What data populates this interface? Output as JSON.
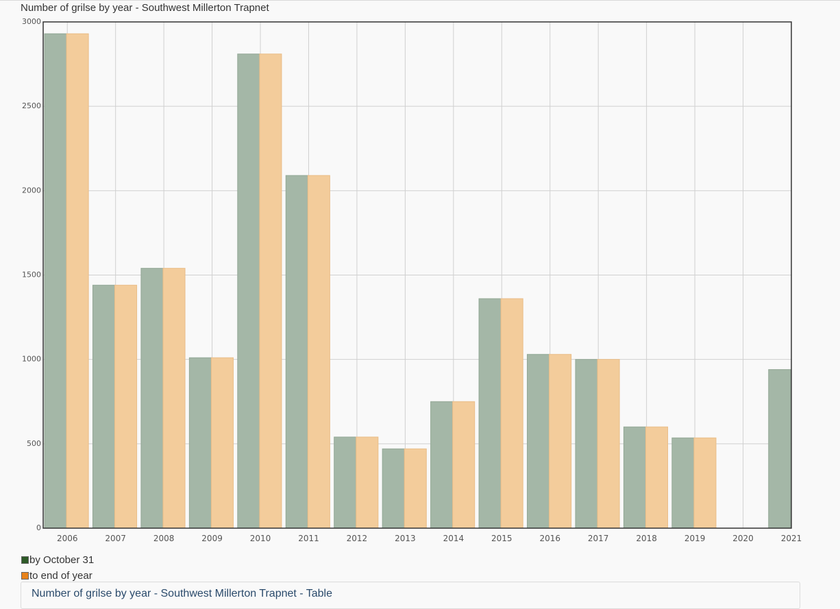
{
  "chart_data": {
    "type": "bar",
    "title": "Number of grilse by year - Southwest Millerton Trapnet",
    "xlabel": "",
    "ylabel": "",
    "ylim": [
      0,
      3000
    ],
    "yticks": [
      0,
      500,
      1000,
      1500,
      2000,
      2500,
      3000
    ],
    "categories": [
      "2006",
      "2007",
      "2008",
      "2009",
      "2010",
      "2011",
      "2012",
      "2013",
      "2014",
      "2015",
      "2016",
      "2017",
      "2018",
      "2019",
      "2020",
      "2021"
    ],
    "series": [
      {
        "name": "by October 31",
        "color": "#a4b7a7",
        "swatch_color": "#2d5a27",
        "values": [
          2930,
          1440,
          1540,
          1010,
          2810,
          2090,
          540,
          470,
          750,
          1360,
          1030,
          1000,
          600,
          535,
          0,
          940
        ]
      },
      {
        "name": "to end of year",
        "color": "#f3cc9b",
        "swatch_color": "#e8821a",
        "values": [
          2930,
          1440,
          1540,
          1010,
          2810,
          2090,
          540,
          470,
          750,
          1360,
          1030,
          1000,
          600,
          535,
          null,
          null
        ]
      }
    ],
    "grid": true,
    "legend_position": "bottom-left"
  },
  "table_link": "Number of grilse by year - Southwest Millerton Trapnet - Table"
}
